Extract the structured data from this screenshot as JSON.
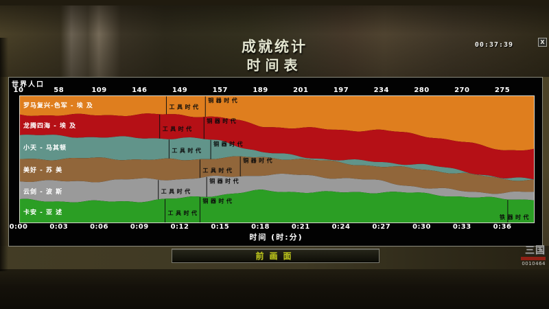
{
  "screen": {
    "title_line1": "成就统计",
    "title_line2": "时间表",
    "timer": "00:37:39",
    "close_label": "X"
  },
  "panel": {
    "population_header": "世界人口",
    "axis_title": "时间 (时:分)"
  },
  "button": {
    "label": "前画面"
  },
  "watermark": {
    "logo": "三国",
    "number": "0010464"
  },
  "chart_data": {
    "type": "area",
    "stacked": true,
    "title": "时间表",
    "x_label": "时间 (时:分)",
    "x_minutes": [
      0,
      3,
      6,
      9,
      12,
      15,
      18,
      21,
      24,
      27,
      30,
      33,
      36
    ],
    "x_tick_labels": [
      "0:00",
      "0:03",
      "0:06",
      "0:09",
      "0:12",
      "0:15",
      "0:18",
      "0:21",
      "0:24",
      "0:27",
      "0:30",
      "0:33",
      "0:36"
    ],
    "population_totals": [
      "10",
      "58",
      "109",
      "146",
      "149",
      "157",
      "189",
      "201",
      "197",
      "234",
      "280",
      "270",
      "275"
    ],
    "ages": {
      "tool": "工具时代",
      "bronze": "铜器时代",
      "iron": "铁器时代"
    },
    "legend_position": "left-inside",
    "series": [
      {
        "name": "罗马复兴-色军 - 埃 及",
        "color": "#DF7E1E",
        "share": [
          0.145,
          0.145,
          0.145,
          0.15,
          0.155,
          0.17,
          0.23,
          0.25,
          0.27,
          0.28,
          0.31,
          0.36,
          0.42
        ],
        "age_markers": [
          {
            "age": "tool",
            "minute": 10.9
          },
          {
            "age": "bronze",
            "minute": 13.8
          }
        ]
      },
      {
        "name": "龙腾四海 - 埃 及",
        "color": "#B51016",
        "share": [
          0.17,
          0.175,
          0.175,
          0.175,
          0.175,
          0.19,
          0.22,
          0.225,
          0.23,
          0.24,
          0.24,
          0.235,
          0.23
        ],
        "age_markers": [
          {
            "age": "tool",
            "minute": 10.4
          },
          {
            "age": "bronze",
            "minute": 13.7
          }
        ]
      },
      {
        "name": "小天 - 马其顿",
        "color": "#61948A",
        "share": [
          0.18,
          0.18,
          0.18,
          0.175,
          0.17,
          0.12,
          0.04,
          0.03,
          0.03,
          0.03,
          0.025,
          0.02,
          0.015
        ],
        "age_markers": [
          {
            "age": "tool",
            "minute": 11.1
          },
          {
            "age": "bronze",
            "minute": 14.2
          }
        ]
      },
      {
        "name": "美好 - 苏 美",
        "color": "#91663A",
        "share": [
          0.17,
          0.17,
          0.17,
          0.165,
          0.16,
          0.155,
          0.125,
          0.12,
          0.125,
          0.13,
          0.145,
          0.13,
          0.1
        ],
        "age_markers": [
          {
            "age": "tool",
            "minute": 13.4
          },
          {
            "age": "bronze",
            "minute": 16.4
          }
        ]
      },
      {
        "name": "云剑 - 波 斯",
        "color": "#9A9A9A",
        "share": [
          0.165,
          0.16,
          0.16,
          0.16,
          0.155,
          0.15,
          0.135,
          0.125,
          0.105,
          0.08,
          0.06,
          0.05,
          0.045
        ],
        "age_markers": [
          {
            "age": "tool",
            "minute": 10.3
          },
          {
            "age": "bronze",
            "minute": 13.9
          }
        ]
      },
      {
        "name": "卡安 - 亚 述",
        "color": "#2B9E24",
        "share": [
          0.17,
          0.17,
          0.17,
          0.175,
          0.185,
          0.215,
          0.25,
          0.25,
          0.24,
          0.24,
          0.22,
          0.205,
          0.19
        ],
        "age_markers": [
          {
            "age": "tool",
            "minute": 10.8
          },
          {
            "age": "bronze",
            "minute": 13.4
          },
          {
            "age": "iron",
            "minute": 36.3
          }
        ]
      }
    ]
  }
}
